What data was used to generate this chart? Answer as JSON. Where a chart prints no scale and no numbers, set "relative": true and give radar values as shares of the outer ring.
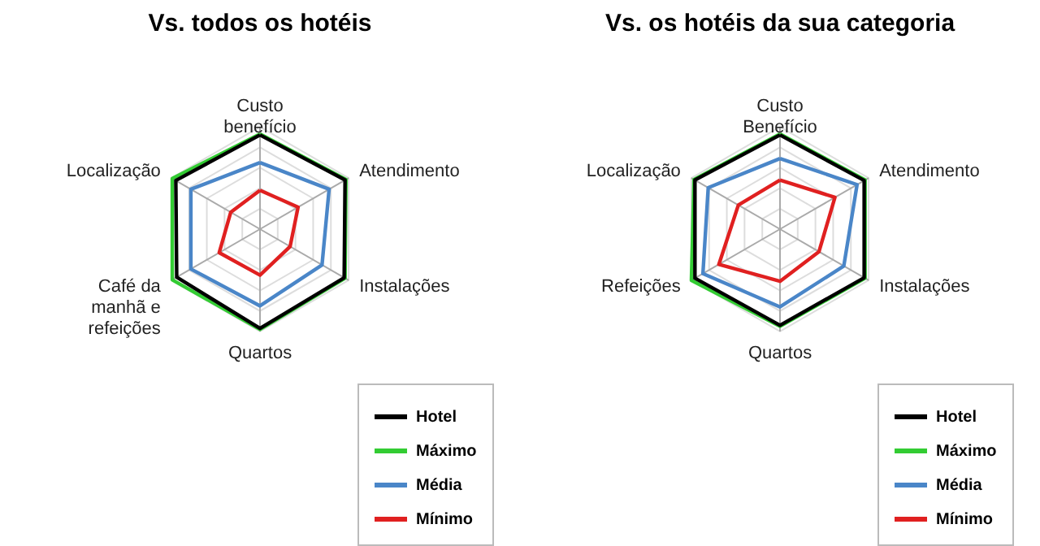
{
  "chart_data": [
    {
      "type": "radar",
      "title": "Vs. todos os hotéis",
      "relative": true,
      "grid": true,
      "legend": "bottom",
      "categories": [
        "Custo benefício",
        "Atendimento",
        "Instalações",
        "Quartos",
        "Café da manhã e refeições",
        "Localização"
      ],
      "series": [
        {
          "name": "Hotel",
          "color": "#000000",
          "values": [
            0.92,
            0.96,
            0.95,
            0.97,
            0.94,
            0.95
          ]
        },
        {
          "name": "Máximo",
          "color": "#33cc33",
          "values": [
            0.93,
            0.97,
            0.96,
            0.98,
            0.99,
            0.99
          ]
        },
        {
          "name": "Média",
          "color": "#4a86c8",
          "values": [
            0.65,
            0.78,
            0.7,
            0.75,
            0.78,
            0.78
          ]
        },
        {
          "name": "Mínimo",
          "color": "#e02020",
          "values": [
            0.38,
            0.43,
            0.34,
            0.45,
            0.46,
            0.33
          ]
        }
      ]
    },
    {
      "type": "radar",
      "title": "Vs. os hotéis da sua categoria",
      "relative": true,
      "grid": true,
      "legend": "bottom",
      "categories": [
        "Custo Benefício",
        "Atendimento",
        "Instalações",
        "Quartos",
        "Refeições",
        "Localização"
      ],
      "series": [
        {
          "name": "Hotel",
          "color": "#000000",
          "values": [
            0.92,
            0.95,
            0.95,
            0.94,
            0.96,
            0.96
          ]
        },
        {
          "name": "Máximo",
          "color": "#33cc33",
          "values": [
            0.93,
            0.96,
            0.96,
            0.95,
            1.0,
            0.97
          ]
        },
        {
          "name": "Média",
          "color": "#4a86c8",
          "values": [
            0.69,
            0.87,
            0.72,
            0.76,
            0.87,
            0.81
          ]
        },
        {
          "name": "Mínimo",
          "color": "#e02020",
          "values": [
            0.48,
            0.62,
            0.44,
            0.51,
            0.69,
            0.47
          ]
        }
      ]
    }
  ]
}
